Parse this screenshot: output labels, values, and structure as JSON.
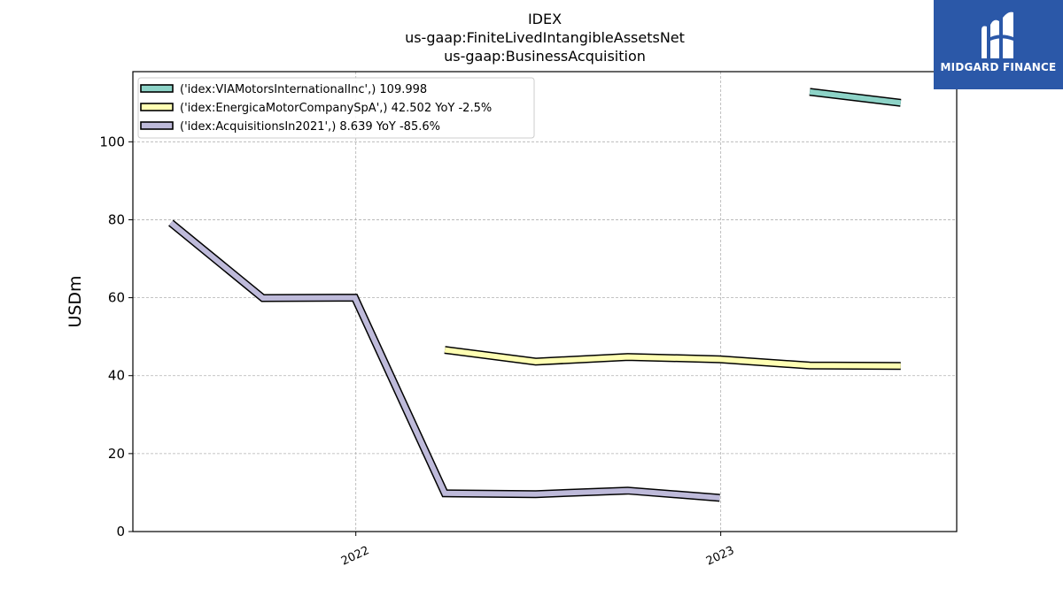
{
  "chart_data": {
    "type": "line",
    "title": [
      "IDEX",
      "us-gaap:FiniteLivedIntangibleAssetsNet",
      "us-gaap:BusinessAcquisition"
    ],
    "xlabel": "",
    "ylabel": "USDm",
    "ylim": [
      0,
      118
    ],
    "yticks": [
      0,
      20,
      40,
      60,
      80,
      100
    ],
    "xlim": [
      "2021-05-23",
      "2023-08-25"
    ],
    "xticks": [
      {
        "date": "2022-01-01",
        "label": "2022"
      },
      {
        "date": "2023-01-01",
        "label": "2023"
      }
    ],
    "grid": true,
    "legend_position": "top-left",
    "series": [
      {
        "name": "('idex:VIAMotorsInternationalInc',) 109.998",
        "color": "#8dd3c7",
        "points": [
          {
            "x": "2023-03-31",
            "y": 112.8
          },
          {
            "x": "2023-06-30",
            "y": 109.998
          }
        ]
      },
      {
        "name": "('idex:EnergicaMotorCompanySpA',) 42.502 YoY -2.5%",
        "color": "#ffffb3",
        "points": [
          {
            "x": "2022-03-31",
            "y": 46.6
          },
          {
            "x": "2022-06-30",
            "y": 43.6
          },
          {
            "x": "2022-09-30",
            "y": 44.8
          },
          {
            "x": "2022-12-31",
            "y": 44.2
          },
          {
            "x": "2023-03-31",
            "y": 42.6
          },
          {
            "x": "2023-06-30",
            "y": 42.502
          }
        ]
      },
      {
        "name": "('idex:AcquisitionsIn2021',) 8.639 YoY -85.6%",
        "color": "#bebada",
        "points": [
          {
            "x": "2021-06-30",
            "y": 79.2
          },
          {
            "x": "2021-09-30",
            "y": 59.9
          },
          {
            "x": "2021-12-31",
            "y": 60.0
          },
          {
            "x": "2022-03-31",
            "y": 9.8
          },
          {
            "x": "2022-06-30",
            "y": 9.6
          },
          {
            "x": "2022-09-30",
            "y": 10.5
          },
          {
            "x": "2022-12-31",
            "y": 8.639
          }
        ]
      }
    ]
  },
  "logo": {
    "text": "MIDGARD FINANCE",
    "background": "#2b58a8",
    "icon": "midgard-logo-icon"
  }
}
